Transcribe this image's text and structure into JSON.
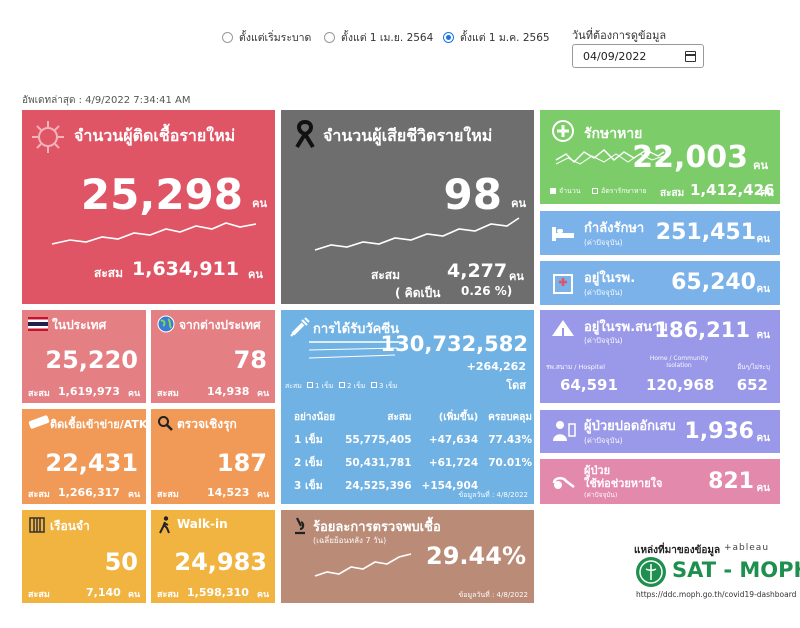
{
  "filters": {
    "options": [
      "ตั้งแต่เริ่มระบาด",
      "ตั้งแต่ 1 เม.ย. 2564",
      "ตั้งแต่ 1 ม.ค. 2565"
    ],
    "selected_index": 2,
    "date_label": "วันที่ต้องการดูข้อมูล",
    "date_value": "04/09/2022"
  },
  "updated": "อัพเดทล่าสุด : 4/9/2022 7:34:41 AM",
  "unit": "คน",
  "acc_label": "สะสม",
  "new_cases": {
    "title": "จำนวนผู้ติดเชื้อรายใหม่",
    "value": "25,298",
    "accumulated": "1,634,911"
  },
  "new_deaths": {
    "title": "จำนวนผู้เสียชีวิตรายใหม่",
    "value": "98",
    "accumulated": "4,277",
    "percent_label": "( คิดเป็น",
    "percent": "0.26 %)"
  },
  "recovered": {
    "title": "รักษาหาย",
    "value": "22,003",
    "accumulated": "1,412,426",
    "legend_count": "จำนวน",
    "legend_rate": "อัตรารักษาหาย"
  },
  "treating": {
    "title": "กำลังรักษา",
    "subtitle": "(ค่าปัจจุบัน)",
    "value": "251,451"
  },
  "in_hospital": {
    "title": "อยู่ในรพ.",
    "subtitle": "(ค่าปัจจุบัน)",
    "value": "65,240"
  },
  "domestic": {
    "title": "ในประเทศ",
    "value": "25,220",
    "accumulated": "1,619,973"
  },
  "imported": {
    "title": "จากต่างประเทศ",
    "value": "78",
    "accumulated": "14,938"
  },
  "atk": {
    "title": "ติดเชื้อเข้าข่าย/ATK",
    "value": "22,431",
    "accumulated": "1,266,317"
  },
  "proactive": {
    "title": "ตรวจเชิงรุก",
    "value": "187",
    "accumulated": "14,523"
  },
  "prison": {
    "title": "เรือนจำ",
    "value": "50",
    "accumulated": "7,140"
  },
  "walkin": {
    "title": "Walk-in",
    "value": "24,983",
    "accumulated": "1,598,310"
  },
  "vaccine": {
    "title": "การได้รับวัคซีน",
    "total": "130,732,582",
    "increase": "+264,262",
    "dose_unit": "โดส",
    "legend": [
      "สะสม",
      "1 เข็ม",
      "2 เข็ม",
      "3 เข็ม"
    ],
    "headers": [
      "อย่างน้อย",
      "สะสม",
      "(เพิ่มขึ้น)",
      "ครอบคลุม"
    ],
    "rows": [
      [
        "1 เข็ม",
        "55,775,405",
        "+47,634",
        "77.43%"
      ],
      [
        "2 เข็ม",
        "50,431,781",
        "+61,724",
        "70.01%"
      ],
      [
        "3 เข็ม",
        "24,525,396",
        "+154,904",
        ""
      ]
    ],
    "note": "ข้อมูลวันที่ : 4/8/2022"
  },
  "positive_rate": {
    "title": "ร้อยละการตรวจพบเชื้อ",
    "subtitle": "(เฉลี่ยย้อนหลัง 7 วัน)",
    "value": "29.44%",
    "note": "ข้อมูลวันที่ : 4/8/2022"
  },
  "field_hospital": {
    "title": "อยู่ในรพ.สนาม",
    "subtitle": "(ค่าปัจจุบัน)",
    "value": "186,211",
    "cols": [
      {
        "label": "รพ.สนาม / Hospitel",
        "value": "64,591"
      },
      {
        "label": "Home / Community Isolation",
        "value": "120,968"
      },
      {
        "label": "อื่นๆ/ไม่ระบุ",
        "value": "652"
      }
    ]
  },
  "pneumonia": {
    "title": "ผู้ป่วยปอดอักเสบ",
    "subtitle": "(ค่าปัจจุบัน)",
    "value": "1,936"
  },
  "ventilator": {
    "title": "ผู้ป่วย",
    "title2": "ใช้ท่อช่วยหายใจ",
    "subtitle": "(ค่าปัจจุบัน)",
    "value": "821"
  },
  "footer": {
    "source_label": "แหล่งที่มาของข้อมูล",
    "tableau": "+ableau",
    "logo": "SAT - MOPH",
    "url": "https://ddc.moph.go.th/covid19-dashboard"
  },
  "colors": {
    "red": "#e05565",
    "gray": "#6e6e6e",
    "green": "#7dcc6a",
    "blue": "#7bb2ea",
    "lavender": "#9a98e8",
    "sat_green": "#1e8f4e"
  }
}
